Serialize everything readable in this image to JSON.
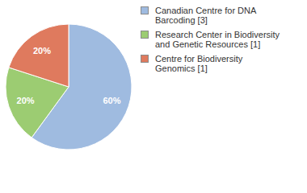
{
  "chart_data": {
    "type": "pie",
    "categories": [
      "Canadian Centre for DNA Barcoding [3]",
      "Research Center in Biodiversity and Genetic Resources [1]",
      "Centre for Biodiversity Genomics [1]"
    ],
    "values": [
      60,
      20,
      20
    ],
    "value_labels": [
      "60%",
      "20%",
      "20%"
    ],
    "colors": [
      "#9fbbe0",
      "#9ccc72",
      "#df7a5e"
    ],
    "data_labels": true,
    "legend": "top-right"
  }
}
